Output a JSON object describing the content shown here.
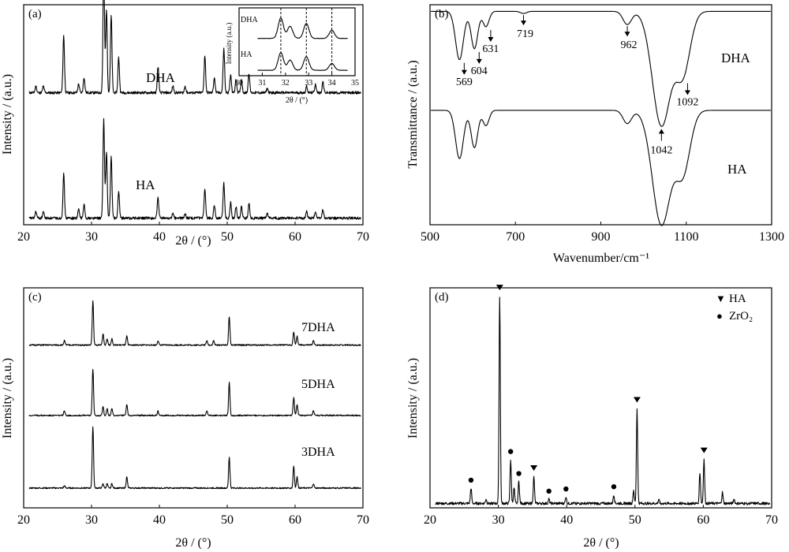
{
  "figure": {
    "panels": [
      "(a)",
      "(b)",
      "(c)",
      "(d)"
    ]
  },
  "chart_data": [
    {
      "panel": "(a)",
      "type": "line",
      "xlabel": "2θ / (°)",
      "ylabel": "Intensity / (a.u.)",
      "xlim": [
        20,
        70
      ],
      "xticks": [
        20,
        30,
        40,
        50,
        60,
        70
      ],
      "series": [
        {
          "name": "DHA",
          "baseline": 0.6,
          "peaks": [
            [
              21.8,
              0.03
            ],
            [
              22.9,
              0.03
            ],
            [
              25.9,
              0.26
            ],
            [
              28.1,
              0.04
            ],
            [
              28.9,
              0.07
            ],
            [
              31.8,
              0.56
            ],
            [
              32.2,
              0.38
            ],
            [
              32.9,
              0.35
            ],
            [
              34.0,
              0.16
            ],
            [
              39.8,
              0.12
            ],
            [
              42.0,
              0.03
            ],
            [
              43.8,
              0.03
            ],
            [
              46.7,
              0.17
            ],
            [
              48.1,
              0.07
            ],
            [
              49.5,
              0.2
            ],
            [
              50.5,
              0.08
            ],
            [
              51.3,
              0.06
            ],
            [
              52.1,
              0.06
            ],
            [
              53.2,
              0.09
            ],
            [
              55.9,
              0.02
            ],
            [
              61.7,
              0.03
            ],
            [
              63.0,
              0.04
            ],
            [
              64.1,
              0.05
            ]
          ]
        },
        {
          "name": "HA",
          "baseline": 0.03,
          "peaks": [
            [
              21.8,
              0.03
            ],
            [
              22.9,
              0.03
            ],
            [
              25.9,
              0.2
            ],
            [
              28.1,
              0.04
            ],
            [
              28.9,
              0.06
            ],
            [
              31.8,
              0.45
            ],
            [
              32.2,
              0.3
            ],
            [
              32.9,
              0.28
            ],
            [
              34.0,
              0.12
            ],
            [
              39.8,
              0.09
            ],
            [
              42.0,
              0.02
            ],
            [
              43.8,
              0.02
            ],
            [
              46.7,
              0.13
            ],
            [
              48.1,
              0.06
            ],
            [
              49.5,
              0.16
            ],
            [
              50.5,
              0.07
            ],
            [
              51.3,
              0.05
            ],
            [
              52.1,
              0.05
            ],
            [
              53.2,
              0.07
            ],
            [
              55.9,
              0.02
            ],
            [
              61.7,
              0.03
            ],
            [
              63.0,
              0.03
            ],
            [
              64.1,
              0.04
            ]
          ]
        }
      ],
      "inset": {
        "xlabel": "2θ / (°)",
        "ylabel": "Intensity (a.u.)",
        "xlim": [
          30,
          35
        ],
        "xticks": [
          30,
          31,
          32,
          33,
          34,
          35
        ],
        "reference_lines": [
          31.8,
          32.9,
          34.0
        ],
        "series": [
          {
            "name": "DHA",
            "baseline": 0.55,
            "peaks": [
              [
                31.8,
                0.3
              ],
              [
                32.2,
                0.18
              ],
              [
                32.9,
                0.22
              ],
              [
                34.0,
                0.12
              ]
            ]
          },
          {
            "name": "HA",
            "baseline": 0.08,
            "peaks": [
              [
                31.8,
                0.26
              ],
              [
                32.2,
                0.15
              ],
              [
                32.9,
                0.2
              ],
              [
                34.0,
                0.1
              ]
            ]
          }
        ]
      }
    },
    {
      "panel": "(b)",
      "type": "line",
      "xlabel": "Wavenumber/cm⁻¹",
      "ylabel": "Transmittance / (a.u.)",
      "xlim": [
        500,
        1300
      ],
      "xticks": [
        500,
        700,
        900,
        1100,
        1300
      ],
      "series": [
        {
          "name": "DHA",
          "baseline": 0.97,
          "bands": [
            [
              569,
              0.22,
              13
            ],
            [
              604,
              0.17,
              11
            ],
            [
              631,
              0.07,
              10
            ],
            [
              719,
              0.01,
              10
            ],
            [
              962,
              0.06,
              14
            ],
            [
              1042,
              0.52,
              30
            ],
            [
              1092,
              0.28,
              24
            ]
          ]
        },
        {
          "name": "HA",
          "baseline": 0.52,
          "bands": [
            [
              569,
              0.22,
              13
            ],
            [
              604,
              0.17,
              11
            ],
            [
              631,
              0.07,
              10
            ],
            [
              962,
              0.06,
              14
            ],
            [
              1042,
              0.52,
              30
            ],
            [
              1092,
              0.28,
              24
            ]
          ]
        }
      ],
      "annotations": [
        {
          "text": "569",
          "x": 569
        },
        {
          "text": "604",
          "x": 604
        },
        {
          "text": "631",
          "x": 631
        },
        {
          "text": "719",
          "x": 719
        },
        {
          "text": "962",
          "x": 962
        },
        {
          "text": "1042",
          "x": 1042
        },
        {
          "text": "1092",
          "x": 1092
        }
      ]
    },
    {
      "panel": "(c)",
      "type": "line",
      "xlabel": "2θ / (°)",
      "ylabel": "Intensity / (a.u.)",
      "xlim": [
        20,
        70
      ],
      "xticks": [
        20,
        30,
        40,
        50,
        60,
        70
      ],
      "series": [
        {
          "name": "7DHA",
          "baseline": 0.74,
          "peaks": [
            [
              26.0,
              0.02
            ],
            [
              30.2,
              0.2
            ],
            [
              31.7,
              0.05
            ],
            [
              32.3,
              0.03
            ],
            [
              33.0,
              0.03
            ],
            [
              35.2,
              0.04
            ],
            [
              39.8,
              0.02
            ],
            [
              47.0,
              0.02
            ],
            [
              48.0,
              0.02
            ],
            [
              50.3,
              0.13
            ],
            [
              59.8,
              0.06
            ],
            [
              60.3,
              0.04
            ],
            [
              62.7,
              0.02
            ]
          ]
        },
        {
          "name": "5DHA",
          "baseline": 0.42,
          "peaks": [
            [
              26.0,
              0.02
            ],
            [
              30.2,
              0.21
            ],
            [
              31.7,
              0.04
            ],
            [
              32.3,
              0.03
            ],
            [
              33.0,
              0.03
            ],
            [
              35.2,
              0.05
            ],
            [
              39.8,
              0.02
            ],
            [
              47.0,
              0.02
            ],
            [
              50.3,
              0.15
            ],
            [
              59.8,
              0.08
            ],
            [
              60.3,
              0.05
            ],
            [
              62.7,
              0.02
            ]
          ]
        },
        {
          "name": "3DHA",
          "baseline": 0.09,
          "peaks": [
            [
              26.0,
              0.01
            ],
            [
              30.2,
              0.28
            ],
            [
              31.7,
              0.02
            ],
            [
              32.3,
              0.02
            ],
            [
              33.0,
              0.02
            ],
            [
              35.2,
              0.05
            ],
            [
              50.3,
              0.14
            ],
            [
              59.8,
              0.1
            ],
            [
              60.3,
              0.05
            ],
            [
              62.7,
              0.02
            ]
          ]
        }
      ]
    },
    {
      "panel": "(d)",
      "type": "line",
      "xlabel": "2θ / (°)",
      "ylabel": "Intensity / (a.u.)",
      "xlim": [
        20,
        70
      ],
      "xticks": [
        20,
        30,
        40,
        50,
        60,
        70
      ],
      "legend": [
        {
          "symbol": "▼",
          "label": "HA"
        },
        {
          "symbol": "●",
          "label": "ZrO₂"
        }
      ],
      "legend_position": "top-right",
      "series": [
        {
          "name": "",
          "baseline": 0.02,
          "peaks": [
            [
              26.0,
              0.07
            ],
            [
              28.2,
              0.02
            ],
            [
              30.2,
              0.94
            ],
            [
              31.8,
              0.2
            ],
            [
              32.3,
              0.07
            ],
            [
              33.0,
              0.1
            ],
            [
              35.2,
              0.12
            ],
            [
              37.4,
              0.02
            ],
            [
              39.9,
              0.03
            ],
            [
              46.9,
              0.04
            ],
            [
              49.8,
              0.06
            ],
            [
              50.3,
              0.43
            ],
            [
              53.5,
              0.02
            ],
            [
              59.5,
              0.14
            ],
            [
              60.1,
              0.2
            ],
            [
              62.8,
              0.05
            ],
            [
              64.5,
              0.02
            ]
          ]
        }
      ],
      "markers": {
        "HA": [
          30.2,
          35.2,
          50.3,
          60.1
        ],
        "ZrO2": [
          26.0,
          31.8,
          33.0,
          37.4,
          39.9,
          46.9
        ]
      }
    }
  ]
}
